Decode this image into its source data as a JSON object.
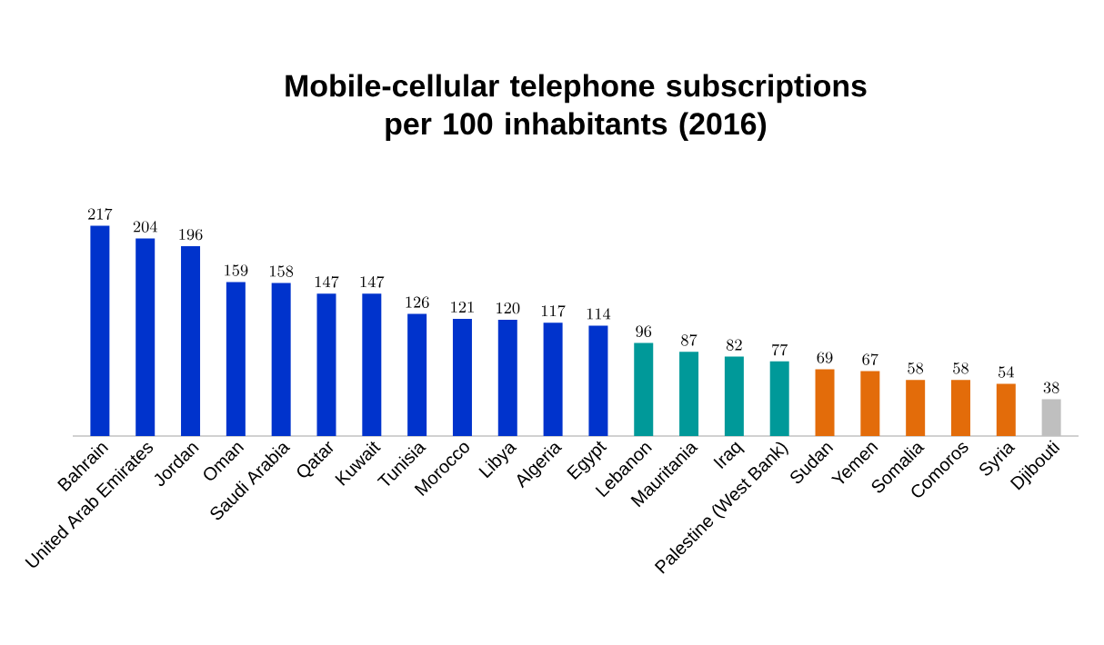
{
  "chart_data": {
    "type": "bar",
    "title": "Mobile-cellular telephone subscriptions per 100 inhabitants (2016)",
    "categories": [
      "Bahrain",
      "United Arab Emirates",
      "Jordan",
      "Oman",
      "Saudi Arabia",
      "Qatar",
      "Kuwait",
      "Tunisia",
      "Morocco",
      "Libya",
      "Algeria",
      "Egypt",
      "Lebanon",
      "Mauritania",
      "Iraq",
      "Palestine (West Bank)",
      "Sudan",
      "Yemen",
      "Somalia",
      "Comoros",
      "Syria",
      "Djibouti"
    ],
    "values": [
      217,
      204,
      196,
      159,
      158,
      147,
      147,
      126,
      121,
      120,
      117,
      114,
      96,
      87,
      82,
      77,
      69,
      67,
      58,
      58,
      54,
      38
    ],
    "colors": [
      "#0033cc",
      "#0033cc",
      "#0033cc",
      "#0033cc",
      "#0033cc",
      "#0033cc",
      "#0033cc",
      "#0033cc",
      "#0033cc",
      "#0033cc",
      "#0033cc",
      "#0033cc",
      "#009999",
      "#009999",
      "#009999",
      "#009999",
      "#e36c0a",
      "#e36c0a",
      "#e36c0a",
      "#e36c0a",
      "#e36c0a",
      "#bfbfbf"
    ],
    "data_labels": true
  }
}
